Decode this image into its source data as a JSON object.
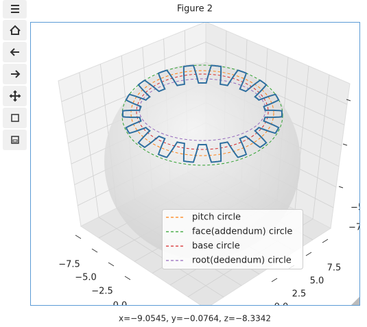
{
  "window": {
    "title": "Figure 2"
  },
  "legend": [
    "pitch circle",
    "face(addendum) circle",
    "base circle",
    "root(dedendum) circle"
  ],
  "axis_ticks": {
    "x": [
      "−7.5",
      "−5.0",
      "−2.5",
      "0.0"
    ],
    "y": [
      "7.5",
      "5.0",
      "2.5",
      "0.0"
    ],
    "z": [
      "−7",
      "−5"
    ]
  },
  "status": "x=−9.0545, y=−0.0764, z=−8.3342"
}
